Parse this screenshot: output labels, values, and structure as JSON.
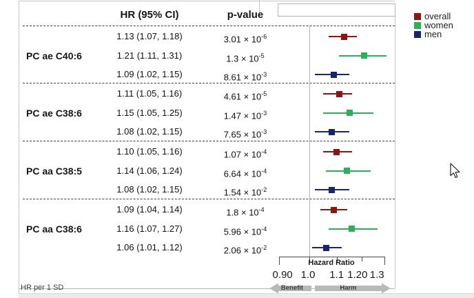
{
  "header": {
    "hr_col": "HR (95% CI)",
    "p_col": "p-value"
  },
  "legend": {
    "items": [
      {
        "label": "overall",
        "color": "#8b1414"
      },
      {
        "label": "women",
        "color": "#2bb157"
      },
      {
        "label": "men",
        "color": "#17266c"
      }
    ]
  },
  "note": "HR per 1 SD",
  "chart_data": {
    "type": "forest",
    "x_scale": "log",
    "xlim": [
      0.88,
      1.34
    ],
    "axis": {
      "title": "Hazard Ratio",
      "tick_labels": [
        "0.90",
        "1.0",
        "1.1",
        "1.20",
        "1.3"
      ],
      "tick_values": [
        0.9,
        1.0,
        1.1,
        1.2,
        1.3
      ],
      "reference_line": 1.0,
      "benefit_label": "Benefit",
      "harm_label": "Harm"
    },
    "groups": [
      {
        "label": "PC ae C40:6",
        "rows": [
          {
            "series": "overall",
            "hr": 1.13,
            "lo": 1.07,
            "hi": 1.18,
            "hr_text": "1.13 (1.07, 1.18)",
            "p_mantissa": "3.01",
            "p_exponent": "-6"
          },
          {
            "series": "women",
            "hr": 1.21,
            "lo": 1.11,
            "hi": 1.31,
            "hr_text": "1.21 (1.11, 1.31)",
            "p_mantissa": "1.3",
            "p_exponent": "-5"
          },
          {
            "series": "men",
            "hr": 1.09,
            "lo": 1.02,
            "hi": 1.15,
            "hr_text": "1.09 (1.02, 1.15)",
            "p_mantissa": "8.61",
            "p_exponent": "-3"
          }
        ]
      },
      {
        "label": "PC ae C38:6",
        "rows": [
          {
            "series": "overall",
            "hr": 1.11,
            "lo": 1.05,
            "hi": 1.16,
            "hr_text": "1.11 (1.05, 1.16)",
            "p_mantissa": "4.61",
            "p_exponent": "-5"
          },
          {
            "series": "women",
            "hr": 1.15,
            "lo": 1.05,
            "hi": 1.25,
            "hr_text": "1.15 (1.05, 1.25)",
            "p_mantissa": "1.47",
            "p_exponent": "-3"
          },
          {
            "series": "men",
            "hr": 1.08,
            "lo": 1.02,
            "hi": 1.15,
            "hr_text": "1.08 (1.02, 1.15)",
            "p_mantissa": "7.65",
            "p_exponent": "-3"
          }
        ]
      },
      {
        "label": "PC aa C38:5",
        "rows": [
          {
            "series": "overall",
            "hr": 1.1,
            "lo": 1.05,
            "hi": 1.16,
            "hr_text": "1.10 (1.05, 1.16)",
            "p_mantissa": "1.07",
            "p_exponent": "-4"
          },
          {
            "series": "women",
            "hr": 1.14,
            "lo": 1.06,
            "hi": 1.24,
            "hr_text": "1.14 (1.06, 1.24)",
            "p_mantissa": "6.64",
            "p_exponent": "-4"
          },
          {
            "series": "men",
            "hr": 1.08,
            "lo": 1.02,
            "hi": 1.15,
            "hr_text": "1.08 (1.02, 1.15)",
            "p_mantissa": "1.54",
            "p_exponent": "-2"
          }
        ]
      },
      {
        "label": "PC aa C38:6",
        "rows": [
          {
            "series": "overall",
            "hr": 1.09,
            "lo": 1.04,
            "hi": 1.14,
            "hr_text": "1.09 (1.04, 1.14)",
            "p_mantissa": "1.8",
            "p_exponent": "-4"
          },
          {
            "series": "women",
            "hr": 1.16,
            "lo": 1.07,
            "hi": 1.27,
            "hr_text": "1.16 (1.07, 1.27)",
            "p_mantissa": "5.96",
            "p_exponent": "-4"
          },
          {
            "series": "men",
            "hr": 1.06,
            "lo": 1.01,
            "hi": 1.12,
            "hr_text": "1.06 (1.01, 1.12)",
            "p_mantissa": "2.06",
            "p_exponent": "-2"
          }
        ]
      }
    ]
  }
}
